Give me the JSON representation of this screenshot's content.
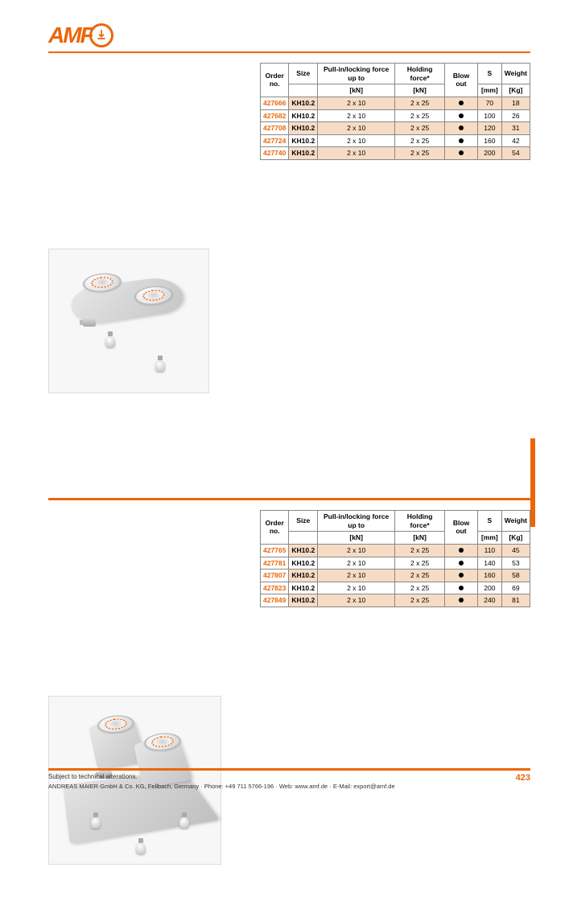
{
  "logo": {
    "text": "AMF"
  },
  "colors": {
    "accent": "#ec6608",
    "row_alt": "#f6dcc4",
    "border": "#888888"
  },
  "table_headers": {
    "order": "Order no.",
    "size": "Size",
    "pull": "Pull-in/locking force up to",
    "pull_unit": "[kN]",
    "hold": "Holding force*",
    "hold_unit": "[kN]",
    "blow": "Blow out",
    "s": "S",
    "s_unit": "[mm]",
    "w": "Weight",
    "w_unit": "[Kg]"
  },
  "table1": [
    {
      "order": "427666",
      "size": "KH10.2",
      "pull": "2 x 10",
      "hold": "2 x 25",
      "blow": true,
      "s": "70",
      "w": "18"
    },
    {
      "order": "427682",
      "size": "KH10.2",
      "pull": "2 x 10",
      "hold": "2 x 25",
      "blow": true,
      "s": "100",
      "w": "26"
    },
    {
      "order": "427708",
      "size": "KH10.2",
      "pull": "2 x 10",
      "hold": "2 x 25",
      "blow": true,
      "s": "120",
      "w": "31"
    },
    {
      "order": "427724",
      "size": "KH10.2",
      "pull": "2 x 10",
      "hold": "2 x 25",
      "blow": true,
      "s": "160",
      "w": "42"
    },
    {
      "order": "427740",
      "size": "KH10.2",
      "pull": "2 x 10",
      "hold": "2 x 25",
      "blow": true,
      "s": "200",
      "w": "54"
    }
  ],
  "table2": [
    {
      "order": "427765",
      "size": "KH10.2",
      "pull": "2  x 10",
      "hold": "2 x 25",
      "blow": true,
      "s": "110",
      "w": "45"
    },
    {
      "order": "427781",
      "size": "KH10.2",
      "pull": "2 x 10",
      "hold": "2 x 25",
      "blow": true,
      "s": "140",
      "w": "53"
    },
    {
      "order": "427807",
      "size": "KH10.2",
      "pull": "2 x 10",
      "hold": "2 x 25",
      "blow": true,
      "s": "160",
      "w": "58"
    },
    {
      "order": "427823",
      "size": "KH10.2",
      "pull": "2 x 10",
      "hold": "2 x 25",
      "blow": true,
      "s": "200",
      "w": "69"
    },
    {
      "order": "427849",
      "size": "KH10.2",
      "pull": "2 x 10",
      "hold": "2 x 25",
      "blow": true,
      "s": "240",
      "w": "81"
    }
  ],
  "footer": {
    "left": "Subject to technical alterations.",
    "center": "ANDREAS MAIER GmbH & Co. KG, Fellbach, Germany · Phone: +49 711 5766-196 · Web: www.amf.de · E-Mail: export@amf.de",
    "page": "423"
  }
}
